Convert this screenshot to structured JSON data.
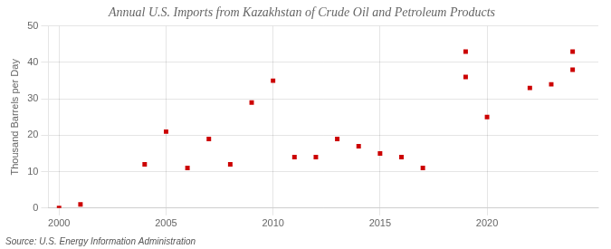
{
  "chart_data": {
    "type": "scatter",
    "title": "Annual U.S. Imports from Kazakhstan of Crude Oil and Petroleum Products",
    "ylabel": "Thousand Barrels per Day",
    "source": "Source: U.S. Energy Information Administration",
    "series": [
      {
        "color": "#cc0000",
        "marker": "square",
        "x": [
          2000,
          2001,
          2004,
          2005,
          2006,
          2007,
          2008,
          2009,
          2010,
          2011,
          2012,
          2013,
          2014,
          2015,
          2016,
          2017,
          2019,
          2020,
          2022,
          2023,
          2024
        ],
        "values": [
          0,
          1,
          12,
          21,
          11,
          19,
          12,
          29,
          35,
          14,
          14,
          19,
          17,
          15,
          14,
          11,
          43,
          25,
          33,
          34,
          38
        ]
      },
      {
        "color": "#cc0000",
        "marker": "square",
        "x": [
          2019,
          2024
        ],
        "values": [
          36,
          43
        ]
      }
    ],
    "xlim": [
      1999.5,
      2025.2
    ],
    "xticks": [
      2000,
      2005,
      2010,
      2015,
      2020
    ],
    "ylim": [
      0,
      50
    ],
    "yticks": [
      0,
      10,
      20,
      30,
      40,
      50
    ],
    "grid": true,
    "legend": false
  }
}
